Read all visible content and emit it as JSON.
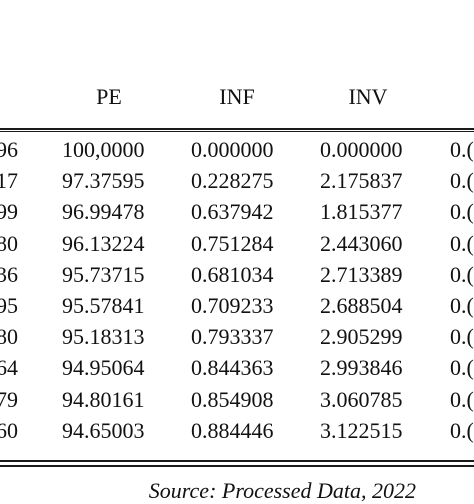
{
  "table": {
    "headers": [
      "PE",
      "INF",
      "INV"
    ],
    "rows": [
      {
        "c0": "96",
        "pe": "100,0000",
        "inf": "0.000000",
        "inv": "0.000000",
        "c4": "0.("
      },
      {
        "c0": "17",
        "pe": "97.37595",
        "inf": "0.228275",
        "inv": "2.175837",
        "c4": "0.("
      },
      {
        "c0": "99",
        "pe": "96.99478",
        "inf": "0.637942",
        "inv": "1.815377",
        "c4": "0.("
      },
      {
        "c0": "80",
        "pe": "96.13224",
        "inf": "0.751284",
        "inv": "2.443060",
        "c4": "0.("
      },
      {
        "c0": "36",
        "pe": "95.73715",
        "inf": "0.681034",
        "inv": "2.713389",
        "c4": "0.("
      },
      {
        "c0": "95",
        "pe": "95.57841",
        "inf": "0.709233",
        "inv": "2.688504",
        "c4": "0.("
      },
      {
        "c0": "80",
        "pe": "95.18313",
        "inf": "0.793337",
        "inv": "2.905299",
        "c4": "0.("
      },
      {
        "c0": "64",
        "pe": "94.95064",
        "inf": "0.844363",
        "inv": "2.993846",
        "c4": "0.("
      },
      {
        "c0": "79",
        "pe": "94.80161",
        "inf": "0.854908",
        "inv": "3.060785",
        "c4": "0.("
      },
      {
        "c0": "60",
        "pe": "94.65003",
        "inf": "0.884446",
        "inv": "3.122515",
        "c4": "0.("
      }
    ]
  },
  "source": "Source: Processed Data, 2022"
}
